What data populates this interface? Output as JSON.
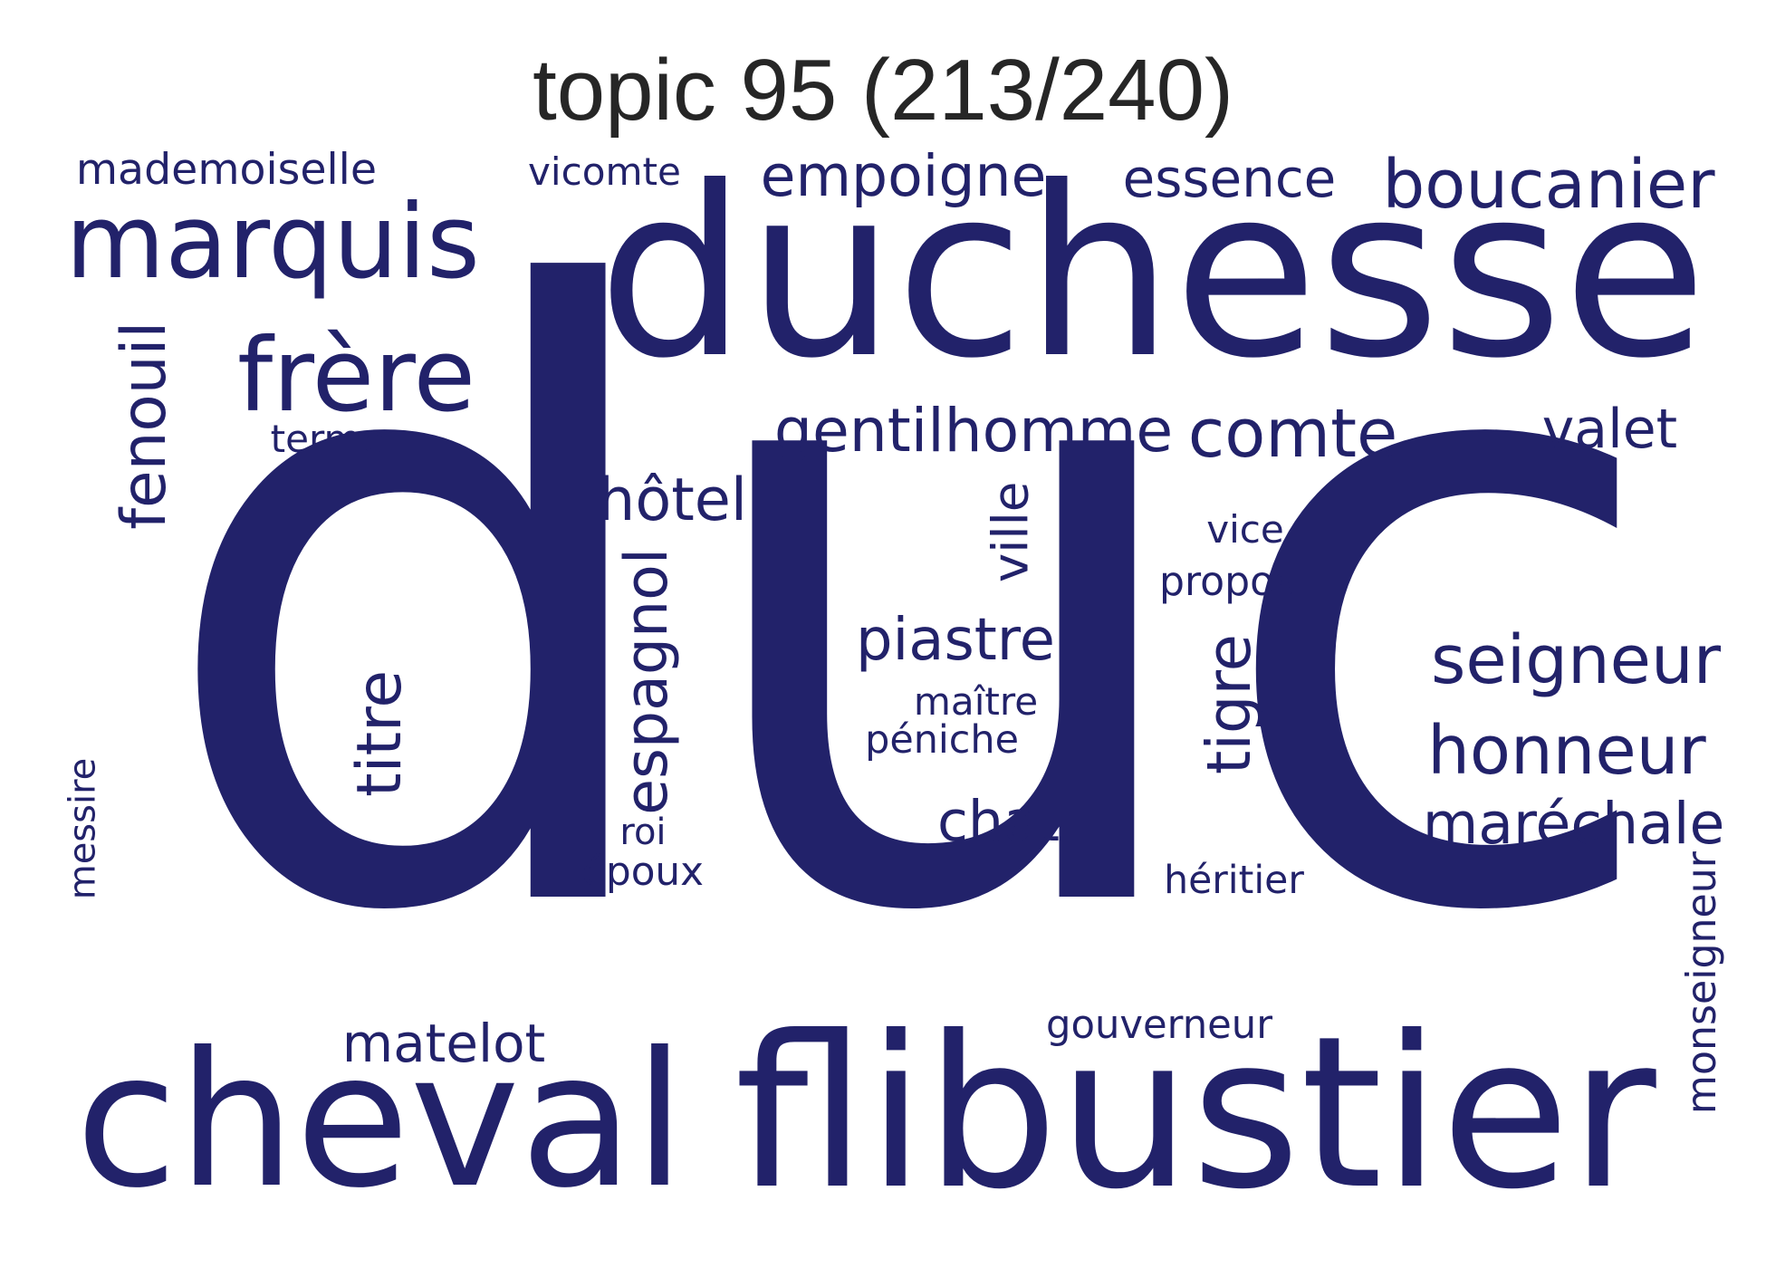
{
  "title": "topic 95 (213/240)",
  "word_color": "#22226a",
  "words": [
    {
      "text": "duc",
      "rank": 1,
      "orientation": "horizontal"
    },
    {
      "text": "duchesse",
      "rank": 2,
      "orientation": "horizontal"
    },
    {
      "text": "flibustier",
      "rank": 3,
      "orientation": "horizontal"
    },
    {
      "text": "cheval",
      "rank": 4,
      "orientation": "horizontal"
    },
    {
      "text": "marquis",
      "rank": 5,
      "orientation": "horizontal"
    },
    {
      "text": "frère",
      "rank": 6,
      "orientation": "horizontal"
    },
    {
      "text": "honneur",
      "rank": 7,
      "orientation": "horizontal"
    },
    {
      "text": "boucanier",
      "rank": 8,
      "orientation": "horizontal"
    },
    {
      "text": "seigneur",
      "rank": 9,
      "orientation": "horizontal"
    },
    {
      "text": "comte",
      "rank": 10,
      "orientation": "horizontal"
    },
    {
      "text": "gentilhomme",
      "rank": 11,
      "orientation": "horizontal"
    },
    {
      "text": "empoigne",
      "rank": 12,
      "orientation": "horizontal"
    },
    {
      "text": "fenouil",
      "rank": 13,
      "orientation": "vertical"
    },
    {
      "text": "espagnol",
      "rank": 14,
      "orientation": "vertical"
    },
    {
      "text": "maréchale",
      "rank": 15,
      "orientation": "horizontal"
    },
    {
      "text": "piastre",
      "rank": 16,
      "orientation": "horizontal"
    },
    {
      "text": "hôtel",
      "rank": 17,
      "orientation": "horizontal"
    },
    {
      "text": "essence",
      "rank": 18,
      "orientation": "horizontal"
    },
    {
      "text": "titre",
      "rank": 19,
      "orientation": "vertical"
    },
    {
      "text": "valet",
      "rank": 20,
      "orientation": "horizontal"
    },
    {
      "text": "matelot",
      "rank": 21,
      "orientation": "horizontal"
    },
    {
      "text": "chat",
      "rank": 22,
      "orientation": "horizontal"
    },
    {
      "text": "tigre",
      "rank": 23,
      "orientation": "vertical"
    },
    {
      "text": "ville",
      "rank": 24,
      "orientation": "vertical"
    },
    {
      "text": "mademoiselle",
      "rank": 25,
      "orientation": "horizontal"
    },
    {
      "text": "monseigneur",
      "rank": 26,
      "orientation": "vertical"
    },
    {
      "text": "vicomte",
      "rank": 27,
      "orientation": "horizontal"
    },
    {
      "text": "gouverneur",
      "rank": 28,
      "orientation": "horizontal"
    },
    {
      "text": "héritier",
      "rank": 29,
      "orientation": "horizontal"
    },
    {
      "text": "messire",
      "rank": 30,
      "orientation": "vertical"
    },
    {
      "text": "propos",
      "rank": 31,
      "orientation": "horizontal"
    },
    {
      "text": "maître",
      "rank": 32,
      "orientation": "horizontal"
    },
    {
      "text": "péniche",
      "rank": 33,
      "orientation": "horizontal"
    },
    {
      "text": "époux",
      "rank": 34,
      "orientation": "horizontal"
    },
    {
      "text": "vice",
      "rank": 35,
      "orientation": "horizontal"
    },
    {
      "text": "terme",
      "rank": 36,
      "orientation": "horizontal"
    },
    {
      "text": "roi",
      "rank": 37,
      "orientation": "horizontal"
    }
  ]
}
